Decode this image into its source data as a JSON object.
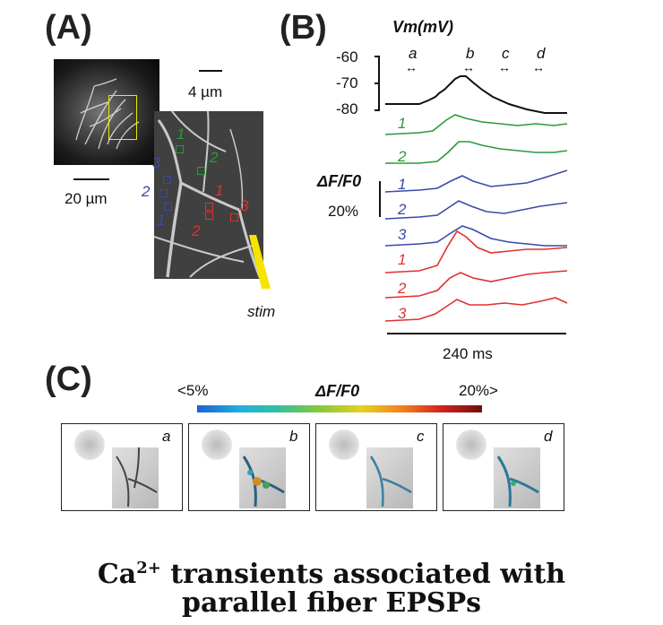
{
  "panels": {
    "a_label": "(A)",
    "b_label": "(B)",
    "c_label": "(C)"
  },
  "panel_a": {
    "scalebar_small": "4 µm",
    "scalebar_large": "20 µm",
    "stim_label": "stim",
    "green_rois": [
      "1",
      "2"
    ],
    "blue_rois": [
      "3",
      "2",
      "1"
    ],
    "red_rois": [
      "1",
      "2",
      "3"
    ],
    "colors": {
      "green": "#2a9a3a",
      "blue": "#3a4aa8",
      "red": "#e03030",
      "stim": "#f4e400"
    }
  },
  "panel_b": {
    "vm_label": "Vm(mV)",
    "vm_ticks": [
      "-60",
      "-70",
      "-80"
    ],
    "window_labels": [
      "a",
      "b",
      "c",
      "d"
    ],
    "df_label": "ΔF/F0",
    "df_scale": "20%",
    "time_scale": "240 ms",
    "trace_labels": [
      {
        "text": "1",
        "color": "#2a9a3a"
      },
      {
        "text": "2",
        "color": "#2a9a3a"
      },
      {
        "text": "1",
        "color": "#3a4aa8"
      },
      {
        "text": "2",
        "color": "#3a4aa8"
      },
      {
        "text": "3",
        "color": "#3a4aa8"
      },
      {
        "text": "1",
        "color": "#e03030"
      },
      {
        "text": "2",
        "color": "#e03030"
      },
      {
        "text": "3",
        "color": "#e03030"
      }
    ]
  },
  "panel_c": {
    "colorbar_min": "<5%",
    "colorbar_title": "ΔF/F0",
    "colorbar_max": "20%>",
    "frames": [
      "a",
      "b",
      "c",
      "d"
    ]
  },
  "caption": {
    "line1_pre": "Ca",
    "line1_sup": "2+",
    "line1_post": " transients associated with",
    "line2": "parallel fiber EPSPs"
  }
}
